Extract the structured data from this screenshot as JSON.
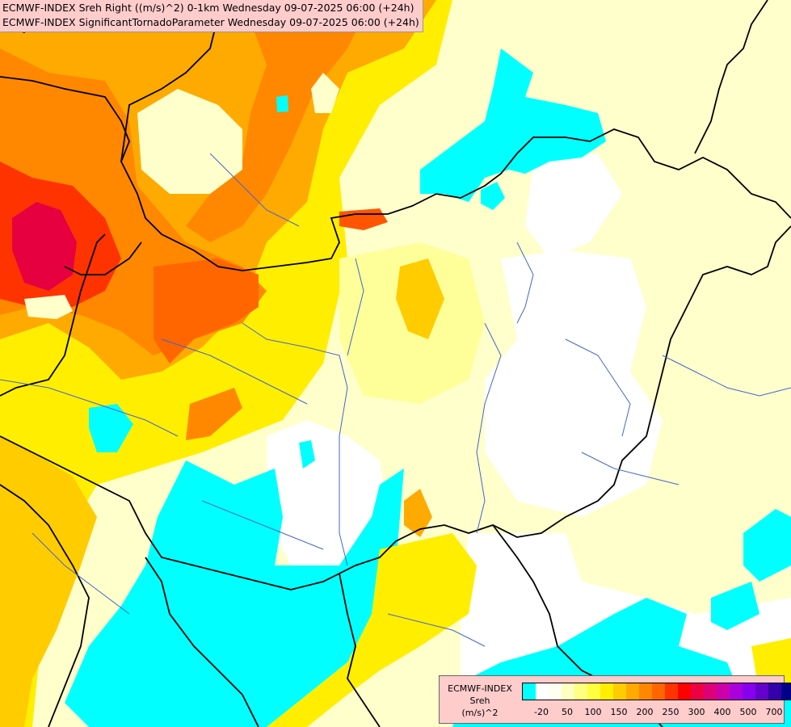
{
  "header": {
    "line1": "ECMWF-INDEX Sreh Right ((m/s)^2) 0-1km Wednesday 09-07-2025 06:00 (+24h)",
    "line2": "ECMWF-INDEX SignificantTornadoParameter Wednesday 09-07-2025 06:00 (+24h)"
  },
  "legend": {
    "line1": "ECMWF-INDEX",
    "line2": "Sreh",
    "line3": "(m/s)^2",
    "colors": [
      "#00ffff",
      "#ffffff",
      "#fffff0",
      "#ffffc0",
      "#ffff80",
      "#ffff40",
      "#ffee00",
      "#ffcc00",
      "#ffaa00",
      "#ff8800",
      "#ff6600",
      "#ff3300",
      "#ff0000",
      "#ee0044",
      "#dd0077",
      "#cc00aa",
      "#aa00dd",
      "#8800ee",
      "#6600cc",
      "#3300aa",
      "#000088"
    ],
    "ticks": [
      "-20",
      "50",
      "100",
      "150",
      "200",
      "250",
      "300",
      "400",
      "500",
      "700"
    ]
  },
  "map": {
    "palette": {
      "cyan": "#00ffff",
      "white": "#ffffff",
      "pale": "#ffffcc",
      "lightyellow": "#ffff99",
      "yellow": "#ffee00",
      "amber": "#ffcc00",
      "orange": "#ffaa00",
      "deeporange": "#ff8800",
      "redorange": "#ff5500",
      "red": "#ff1100",
      "crimson": "#e60040"
    }
  }
}
